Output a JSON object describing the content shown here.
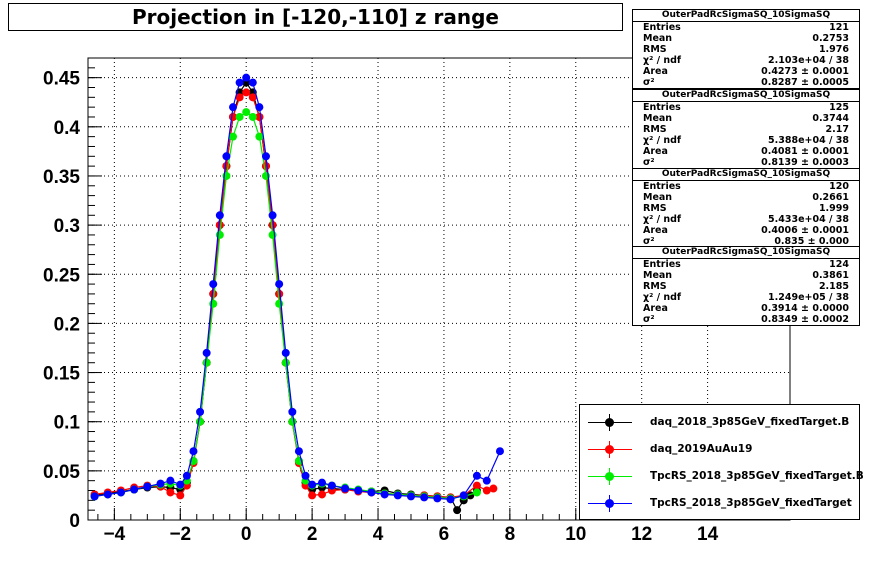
{
  "title": "Projection in [-120,-110] z range",
  "chart_data": {
    "type": "scatter",
    "title": "Projection in [-120,-110] z range",
    "xlim": [
      -4.8,
      16.5
    ],
    "ylim": [
      0,
      0.47
    ],
    "xticks": [
      -4,
      -2,
      0,
      2,
      4,
      6,
      8,
      10,
      12,
      14
    ],
    "yticks": [
      0,
      0.05,
      0.1,
      0.15,
      0.2,
      0.25,
      0.3,
      0.35,
      0.4,
      0.45
    ],
    "yticklabels": [
      "0",
      "0.05",
      "0.1",
      "0.15",
      "0.2",
      "0.25",
      "0.3",
      "0.35",
      "0.4",
      "0.45"
    ],
    "grid": true,
    "legend_position": "bottom-right",
    "series": [
      {
        "name": "daq_2018_3p85GeV_fixedTarget.B",
        "color": "#000000",
        "x": [
          -4.6,
          -4.2,
          -3.8,
          -3.4,
          -3.0,
          -2.6,
          -2.3,
          -2.0,
          -1.8,
          -1.6,
          -1.4,
          -1.2,
          -1.0,
          -0.8,
          -0.6,
          -0.4,
          -0.2,
          0.0,
          0.2,
          0.4,
          0.6,
          0.8,
          1.0,
          1.2,
          1.4,
          1.6,
          1.8,
          2.0,
          2.3,
          2.6,
          3.0,
          3.4,
          3.8,
          4.2,
          4.6,
          5.0,
          5.4,
          5.8,
          6.2,
          6.4,
          6.6,
          6.8,
          7.0
        ],
        "y": [
          0.025,
          0.027,
          0.029,
          0.031,
          0.033,
          0.034,
          0.033,
          0.031,
          0.038,
          0.06,
          0.1,
          0.16,
          0.23,
          0.3,
          0.36,
          0.41,
          0.435,
          0.445,
          0.435,
          0.41,
          0.36,
          0.3,
          0.23,
          0.16,
          0.1,
          0.06,
          0.038,
          0.031,
          0.033,
          0.032,
          0.031,
          0.03,
          0.029,
          0.03,
          0.027,
          0.026,
          0.025,
          0.024,
          0.023,
          0.01,
          0.02,
          0.025,
          0.03
        ]
      },
      {
        "name": "daq_2019AuAu19",
        "color": "#ff0000",
        "x": [
          -4.6,
          -4.2,
          -3.8,
          -3.4,
          -3.0,
          -2.6,
          -2.3,
          -2.0,
          -1.8,
          -1.6,
          -1.4,
          -1.2,
          -1.0,
          -0.8,
          -0.6,
          -0.4,
          -0.2,
          0.0,
          0.2,
          0.4,
          0.6,
          0.8,
          1.0,
          1.2,
          1.4,
          1.6,
          1.8,
          2.0,
          2.3,
          2.6,
          3.0,
          3.4,
          3.8,
          4.2,
          4.6,
          5.0,
          5.4,
          5.8,
          6.2,
          6.6,
          7.0,
          7.3,
          7.5
        ],
        "y": [
          0.026,
          0.028,
          0.03,
          0.033,
          0.035,
          0.034,
          0.028,
          0.025,
          0.035,
          0.058,
          0.1,
          0.16,
          0.23,
          0.3,
          0.36,
          0.41,
          0.43,
          0.435,
          0.43,
          0.41,
          0.36,
          0.3,
          0.23,
          0.16,
          0.1,
          0.058,
          0.035,
          0.025,
          0.026,
          0.03,
          0.031,
          0.029,
          0.028,
          0.027,
          0.026,
          0.025,
          0.025,
          0.024,
          0.023,
          0.025,
          0.035,
          0.03,
          0.032
        ]
      },
      {
        "name": "TpcRS_2018_3p85GeV_fixedTarget.B",
        "color": "#00ee00",
        "x": [
          -4.6,
          -4.2,
          -3.8,
          -3.4,
          -3.0,
          -2.6,
          -2.3,
          -2.0,
          -1.8,
          -1.6,
          -1.4,
          -1.2,
          -1.0,
          -0.8,
          -0.6,
          -0.4,
          -0.2,
          0.0,
          0.2,
          0.4,
          0.6,
          0.8,
          1.0,
          1.2,
          1.4,
          1.6,
          1.8,
          2.0,
          2.3,
          2.6,
          3.0,
          3.4,
          3.8,
          4.2,
          4.6,
          5.0,
          5.4,
          5.8,
          6.2,
          6.6,
          7.0
        ],
        "y": [
          0.024,
          0.026,
          0.028,
          0.031,
          0.034,
          0.036,
          0.037,
          0.035,
          0.04,
          0.06,
          0.1,
          0.16,
          0.22,
          0.29,
          0.35,
          0.39,
          0.41,
          0.415,
          0.41,
          0.39,
          0.35,
          0.29,
          0.22,
          0.16,
          0.1,
          0.06,
          0.04,
          0.035,
          0.037,
          0.035,
          0.033,
          0.031,
          0.029,
          0.027,
          0.026,
          0.025,
          0.024,
          0.023,
          0.022,
          0.024,
          0.028
        ]
      },
      {
        "name": "TpcRS_2018_3p85GeV_fixedTarget",
        "color": "#0000ff",
        "x": [
          -4.6,
          -4.2,
          -3.8,
          -3.4,
          -3.0,
          -2.6,
          -2.3,
          -2.0,
          -1.8,
          -1.6,
          -1.4,
          -1.2,
          -1.0,
          -0.8,
          -0.6,
          -0.4,
          -0.2,
          0.0,
          0.2,
          0.4,
          0.6,
          0.8,
          1.0,
          1.2,
          1.4,
          1.6,
          1.8,
          2.0,
          2.3,
          2.6,
          3.0,
          3.4,
          3.8,
          4.2,
          4.6,
          5.0,
          5.4,
          5.8,
          6.2,
          6.6,
          7.0,
          7.3,
          7.7
        ],
        "y": [
          0.024,
          0.026,
          0.028,
          0.031,
          0.034,
          0.037,
          0.04,
          0.036,
          0.045,
          0.07,
          0.11,
          0.17,
          0.24,
          0.31,
          0.37,
          0.42,
          0.445,
          0.45,
          0.445,
          0.42,
          0.37,
          0.31,
          0.24,
          0.17,
          0.11,
          0.07,
          0.045,
          0.036,
          0.038,
          0.035,
          0.032,
          0.03,
          0.028,
          0.026,
          0.025,
          0.024,
          0.023,
          0.022,
          0.021,
          0.025,
          0.045,
          0.04,
          0.07
        ]
      }
    ],
    "stat_boxes": [
      {
        "name": "OuterPadRcSigmaSQ_10SigmaSQ",
        "rows": [
          [
            "Entries",
            "121"
          ],
          [
            "Mean",
            "0.2753"
          ],
          [
            "RMS",
            "1.976"
          ],
          [
            "χ² / ndf",
            "2.103e+04 / 38"
          ],
          [
            "Area",
            "0.4273 ± 0.0001"
          ],
          [
            "σ²",
            "0.8287 ± 0.0005"
          ]
        ]
      },
      {
        "name": "OuterPadRcSigmaSQ_10SigmaSQ",
        "rows": [
          [
            "Entries",
            "125"
          ],
          [
            "Mean",
            "0.3744"
          ],
          [
            "RMS",
            "2.17"
          ],
          [
            "χ² / ndf",
            "5.388e+04 / 38"
          ],
          [
            "Area",
            "0.4081 ± 0.0001"
          ],
          [
            "σ²",
            "0.8139 ± 0.0003"
          ]
        ]
      },
      {
        "name": "OuterPadRcSigmaSQ_10SigmaSQ",
        "rows": [
          [
            "Entries",
            "120"
          ],
          [
            "Mean",
            "0.2661"
          ],
          [
            "RMS",
            "1.999"
          ],
          [
            "χ² / ndf",
            "5.433e+04 / 38"
          ],
          [
            "Area",
            "0.4006 ± 0.0001"
          ],
          [
            "σ²",
            "0.835 ± 0.000"
          ]
        ]
      },
      {
        "name": "OuterPadRcSigmaSQ_10SigmaSQ",
        "rows": [
          [
            "Entries",
            "124"
          ],
          [
            "Mean",
            "0.3861"
          ],
          [
            "RMS",
            "2.185"
          ],
          [
            "χ² / ndf",
            "1.249e+05 / 38"
          ],
          [
            "Area",
            "0.3914 ± 0.0000"
          ],
          [
            "σ²",
            "0.8349 ± 0.0002"
          ]
        ]
      }
    ]
  }
}
